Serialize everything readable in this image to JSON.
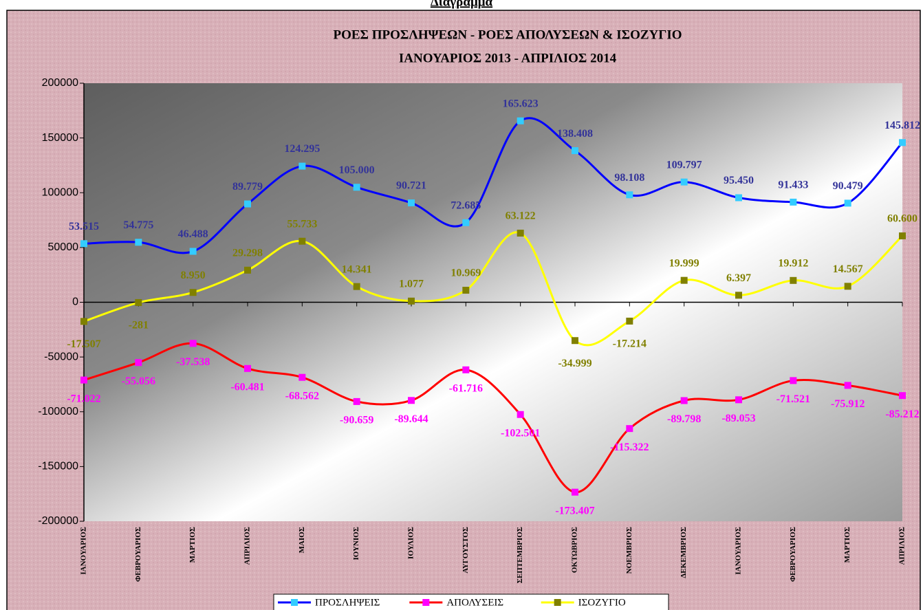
{
  "heading": "Διάγραμμα",
  "chart_data": {
    "type": "line",
    "title": "ΡΟΕΣ ΠΡΟΣΛΗΨΕΩΝ - ΡΟΕΣ ΑΠΟΛΥΣΕΩΝ & ΙΣΟΖΥΓΙΟ",
    "subtitle": "ΙΑΝΟΥΑΡΙΟΣ 2013 - ΑΠΡΙΛΙΟΣ 2014",
    "categories": [
      "ΙΑΝΟΥΑΡΙΟΣ",
      "ΦΕΒΡΟΥΑΡΙΟΣ",
      "ΜΑΡΤΙΟΣ",
      "ΑΠΡΙΛΙΟΣ",
      "ΜΑΙΟΣ",
      "ΙΟΥΝΙΟΣ",
      "ΙΟΥΛΙΟΣ",
      "ΑΥΓΟΥΣΤΟΣ",
      "ΣΕΠΤΕΜΒΡΙΟΣ",
      "ΟΚΤΩΒΡΙΟΣ",
      "ΝΟΕΜΒΡΙΟΣ",
      "ΔΕΚΕΜΒΡΙΟΣ",
      "ΙΑΝΟΥΑΡΙΟΣ",
      "ΦΕΒΡΟΥΑΡΙΟΣ",
      "ΜΑΡΤΙΟΣ",
      "ΑΠΡΙΛΙΟΣ"
    ],
    "series": [
      {
        "name": "ΠΡΟΣΛΗΨΕΙΣ",
        "color": "#0000ff",
        "marker_color": "#33ccff",
        "label_color": "#333399",
        "values": [
          53515,
          54775,
          46488,
          89779,
          124295,
          105000,
          90721,
          72685,
          165623,
          138408,
          98108,
          109797,
          95450,
          91433,
          90479,
          145812
        ],
        "value_labels": [
          "53.515",
          "54.775",
          "46.488",
          "89.779",
          "124.295",
          "105.000",
          "90.721",
          "72.685",
          "165.623",
          "138.408",
          "98.108",
          "109.797",
          "95.450",
          "91.433",
          "90.479",
          "145.812"
        ]
      },
      {
        "name": "ΑΠΟΛΥΣΕΙΣ",
        "color": "#ff0000",
        "marker_color": "#ff00ff",
        "label_color": "#ff00ff",
        "values": [
          -71022,
          -55056,
          -37538,
          -60481,
          -68562,
          -90659,
          -89644,
          -61716,
          -102501,
          -173407,
          -115322,
          -89798,
          -89053,
          -71521,
          -75912,
          -85212
        ],
        "value_labels": [
          "-71.022",
          "-55.056",
          "-37.538",
          "-60.481",
          "-68.562",
          "-90.659",
          "-89.644",
          "-61.716",
          "-102.501",
          "-173.407",
          "-115.322",
          "-89.798",
          "-89.053",
          "-71.521",
          "-75.912",
          "-85.212"
        ]
      },
      {
        "name": "ΙΣΟΖΥΓΙΟ",
        "color": "#ffff00",
        "marker_color": "#808000",
        "label_color": "#808000",
        "values": [
          -17507,
          -281,
          8950,
          29298,
          55733,
          14341,
          1077,
          10969,
          63122,
          -34999,
          -17214,
          19999,
          6397,
          19912,
          14567,
          60600
        ],
        "value_labels": [
          "-17.507",
          "-281",
          "8.950",
          "29.298",
          "55.733",
          "14.341",
          "1.077",
          "10.969",
          "63.122",
          "-34.999",
          "-17.214",
          "19.999",
          "6.397",
          "19.912",
          "14.567",
          "60.600"
        ]
      }
    ],
    "ylim": [
      -200000,
      200000
    ],
    "yticks": [
      -200000,
      -150000,
      -100000,
      -50000,
      0,
      50000,
      100000,
      150000,
      200000
    ],
    "legend": "bottom"
  }
}
